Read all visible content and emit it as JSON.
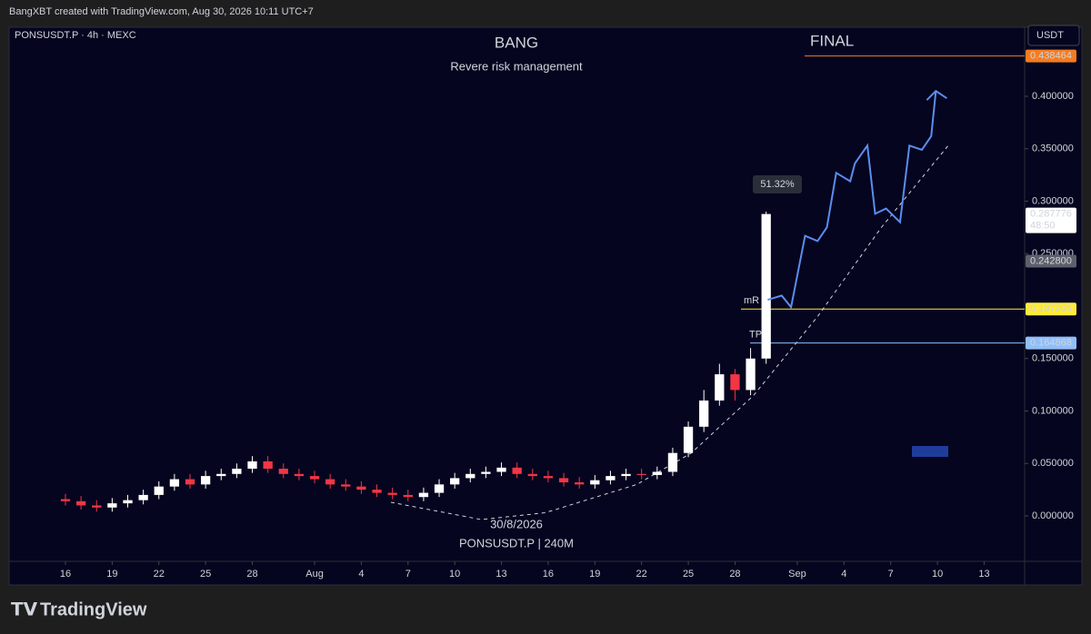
{
  "header": {
    "text": "BangXBT created with TradingView.com, Aug 30, 2026 10:11 UTC+7"
  },
  "footer": {
    "logo": "TradingView"
  },
  "chart_data": {
    "type": "candlestick",
    "symbol": "PONSUSDT.P · 4h · MEXC",
    "title": "BANG",
    "subtitle": "Revere risk management",
    "annotation": "FINAL",
    "currency": "USDT",
    "watermark_date": "30/8/2026",
    "watermark_symbol": "PONSUSDT.P | 240M",
    "measure_label": "51.32%",
    "level_labels": [
      "mR",
      "TP"
    ],
    "countdown": "48:50",
    "colors": {
      "up": "#ffffff",
      "down": "#f23645",
      "projection": "#5b8def",
      "curve": "#cfd3dc"
    },
    "x": [
      0,
      1,
      2,
      3,
      4,
      5,
      6,
      7,
      8,
      9,
      10,
      11,
      12,
      13,
      14,
      15,
      16,
      17,
      18,
      19,
      20,
      21,
      22,
      23,
      24,
      25,
      26,
      27,
      28,
      29,
      30,
      31,
      32,
      33,
      34,
      35,
      36,
      37,
      38,
      39,
      40,
      41,
      42,
      43,
      44,
      45
    ],
    "open": [
      0.016,
      0.014,
      0.01,
      0.008,
      0.012,
      0.015,
      0.02,
      0.028,
      0.035,
      0.03,
      0.038,
      0.04,
      0.045,
      0.052,
      0.045,
      0.04,
      0.038,
      0.035,
      0.03,
      0.028,
      0.025,
      0.022,
      0.02,
      0.018,
      0.022,
      0.03,
      0.036,
      0.04,
      0.042,
      0.046,
      0.04,
      0.038,
      0.036,
      0.032,
      0.03,
      0.034,
      0.038,
      0.04,
      0.039,
      0.042,
      0.06,
      0.085,
      0.11,
      0.135,
      0.12,
      0.15
    ],
    "high": [
      0.021,
      0.019,
      0.015,
      0.017,
      0.02,
      0.025,
      0.033,
      0.04,
      0.04,
      0.043,
      0.045,
      0.05,
      0.057,
      0.057,
      0.05,
      0.045,
      0.043,
      0.04,
      0.035,
      0.033,
      0.03,
      0.027,
      0.025,
      0.027,
      0.035,
      0.041,
      0.045,
      0.047,
      0.051,
      0.051,
      0.045,
      0.043,
      0.041,
      0.037,
      0.039,
      0.043,
      0.045,
      0.045,
      0.047,
      0.065,
      0.09,
      0.12,
      0.145,
      0.14,
      0.16,
      0.29
    ],
    "low": [
      0.01,
      0.006,
      0.004,
      0.004,
      0.008,
      0.011,
      0.016,
      0.024,
      0.026,
      0.026,
      0.034,
      0.036,
      0.041,
      0.041,
      0.036,
      0.034,
      0.031,
      0.026,
      0.024,
      0.021,
      0.018,
      0.016,
      0.014,
      0.014,
      0.018,
      0.026,
      0.032,
      0.036,
      0.038,
      0.036,
      0.034,
      0.032,
      0.028,
      0.026,
      0.026,
      0.03,
      0.034,
      0.035,
      0.035,
      0.038,
      0.056,
      0.08,
      0.105,
      0.11,
      0.115,
      0.145
    ],
    "close": [
      0.014,
      0.01,
      0.008,
      0.012,
      0.015,
      0.02,
      0.028,
      0.035,
      0.03,
      0.038,
      0.04,
      0.045,
      0.052,
      0.045,
      0.04,
      0.038,
      0.035,
      0.03,
      0.028,
      0.025,
      0.022,
      0.02,
      0.018,
      0.022,
      0.03,
      0.036,
      0.04,
      0.042,
      0.046,
      0.04,
      0.038,
      0.036,
      0.032,
      0.03,
      0.034,
      0.038,
      0.04,
      0.039,
      0.042,
      0.06,
      0.085,
      0.11,
      0.135,
      0.12,
      0.15,
      0.287776
    ],
    "projection": {
      "x": [
        45.1,
        46,
        46.6,
        47.5,
        48.3,
        48.9,
        49.5,
        50.4,
        50.7,
        51.5,
        52,
        52.7,
        53.6,
        54.2,
        55,
        55.6,
        55.9
      ],
      "values": [
        0.206,
        0.21,
        0.199,
        0.267,
        0.262,
        0.275,
        0.327,
        0.319,
        0.336,
        0.353,
        0.288,
        0.293,
        0.28,
        0.353,
        0.349,
        0.362,
        0.405
      ]
    },
    "curve": {
      "x": [
        20.9,
        26.7,
        30.8,
        36.7,
        40.2,
        44.2,
        48.3,
        52.4,
        56.8
      ],
      "values": [
        0.013,
        -0.0035,
        0.003,
        0.03,
        0.06,
        0.115,
        0.19,
        0.275,
        0.355
      ]
    },
    "price_markers": [
      {
        "value": 0.438464,
        "label": "0.438464",
        "color": "#f57c1f",
        "text_color": "#ffffff"
      },
      {
        "value": 0.287776,
        "label": "0.287776",
        "color": "#ffffff",
        "text_color": "#000000"
      },
      {
        "value": 0.2428,
        "label": "0.242800",
        "color": "#5d606b",
        "text_color": "#ffffff"
      },
      {
        "value": 0.197205,
        "label": "0.197205",
        "color": "#ffeb3b",
        "text_color": "#000000"
      },
      {
        "value": 0.164868,
        "label": "0.164868",
        "color": "#90bff9",
        "text_color": "#000000"
      }
    ],
    "xlim": [
      -3.62,
      61.6
    ],
    "ylim": [
      -0.0433,
      0.4658
    ],
    "xticks": [
      {
        "value": 0,
        "label": "16"
      },
      {
        "value": 3,
        "label": "19"
      },
      {
        "value": 6,
        "label": "22"
      },
      {
        "value": 9,
        "label": "25"
      },
      {
        "value": 12,
        "label": "28"
      },
      {
        "value": 16,
        "label": "Aug"
      },
      {
        "value": 19,
        "label": "4"
      },
      {
        "value": 22,
        "label": "7"
      },
      {
        "value": 25,
        "label": "10"
      },
      {
        "value": 28,
        "label": "13"
      },
      {
        "value": 31,
        "label": "16"
      },
      {
        "value": 34,
        "label": "19"
      },
      {
        "value": 37,
        "label": "22"
      },
      {
        "value": 40,
        "label": "25"
      },
      {
        "value": 43,
        "label": "28"
      },
      {
        "value": 47,
        "label": "Sep"
      },
      {
        "value": 50,
        "label": "4"
      },
      {
        "value": 53,
        "label": "7"
      },
      {
        "value": 56,
        "label": "10"
      },
      {
        "value": 59,
        "label": "13"
      }
    ],
    "yticks": [
      {
        "value": 0,
        "label": "0.000000"
      },
      {
        "value": 0.05,
        "label": "0.050000"
      },
      {
        "value": 0.1,
        "label": "0.100000"
      },
      {
        "value": 0.15,
        "label": "0.150000"
      },
      {
        "value": 0.25,
        "label": "0.250000"
      },
      {
        "value": 0.3,
        "label": "0.300000"
      },
      {
        "value": 0.35,
        "label": "0.350000"
      },
      {
        "value": 0.4,
        "label": "0.400000"
      }
    ],
    "grid": false
  }
}
